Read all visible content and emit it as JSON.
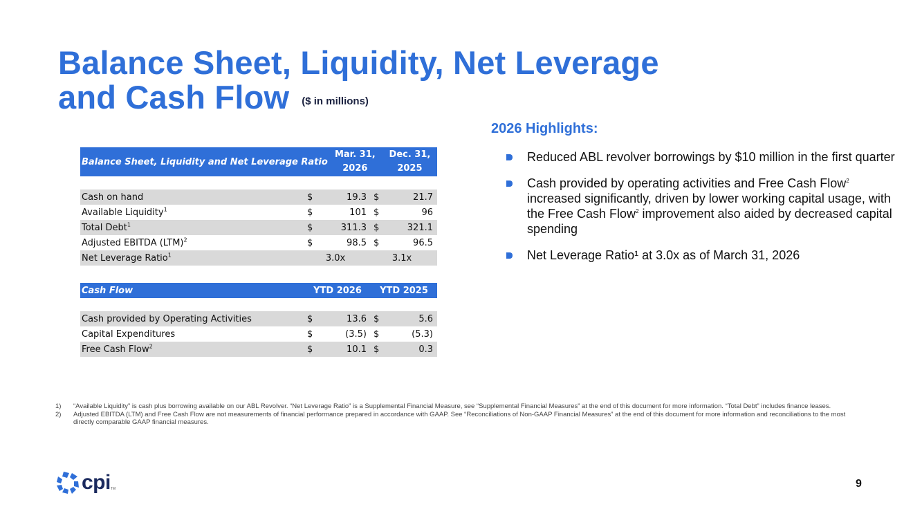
{
  "title": {
    "line1": "Balance Sheet, Liquidity, Net Leverage",
    "line2": "and Cash Flow",
    "unit": "($ in millions)"
  },
  "balance_table": {
    "header": "Balance Sheet, Liquidity and Net Leverage Ratio",
    "col1": [
      "Mar. 31,",
      "2026"
    ],
    "col2": [
      "Dec. 31,",
      "2025"
    ],
    "rows": [
      {
        "label": "Cash on hand",
        "sup": "",
        "c1": "$",
        "v1": "19.3",
        "c2": "$",
        "v2": "21.7"
      },
      {
        "label": "Available Liquidity",
        "sup": "1",
        "c1": "$",
        "v1": "101",
        "c2": "$",
        "v2": "96"
      },
      {
        "label": "Total Debt",
        "sup": "1",
        "c1": "$",
        "v1": "311.3",
        "c2": "$",
        "v2": "321.1"
      },
      {
        "label": "Adjusted EBITDA (LTM)",
        "sup": "2",
        "c1": "$",
        "v1": "98.5",
        "c2": "$",
        "v2": "96.5"
      },
      {
        "label": "Net Leverage Ratio",
        "sup": "1",
        "c1": "",
        "v1": "3.0x",
        "c2": "",
        "v2": "3.1x"
      }
    ]
  },
  "cashflow_table": {
    "header": "Cash Flow",
    "col1": "YTD 2026",
    "col2": "YTD 2025",
    "rows": [
      {
        "label": "Cash provided by Operating Activities",
        "sup": "",
        "c1": "$",
        "v1": "13.6",
        "c2": "$",
        "v2": "5.6"
      },
      {
        "label": "Capital Expenditures",
        "sup": "",
        "c1": "$",
        "v1": "(3.5)",
        "c2": "$",
        "v2": "(5.3)"
      },
      {
        "label": "Free Cash Flow",
        "sup": "2",
        "c1": "$",
        "v1": "10.1",
        "c2": "$",
        "v2": "0.3"
      }
    ]
  },
  "highlights": {
    "title": "2026 Highlights:",
    "items": [
      {
        "text": "Reduced ABL revolver borrowings by $10 million in the first quarter"
      },
      {
        "text_a": "Cash provided by operating activities and Free Cash Flow",
        "sup_a": "2",
        "text_b": " increased significantly, driven by lower working capital usage, with the Free Cash Flow",
        "sup_b": "2",
        "text_c": " improvement also aided by decreased capital spending"
      },
      {
        "text": "Net Leverage Ratio¹ at 3.0x as of March 31, 2026"
      }
    ]
  },
  "footnotes": [
    {
      "num": "1)",
      "text": "“Available Liquidity” is cash plus borrowing available on our ABL Revolver. “Net Leverage Ratio” is a Supplemental Financial Measure, see “Supplemental Financial Measures” at the end of this document for more information. “Total Debt” includes finance leases."
    },
    {
      "num": "2)",
      "text": "Adjusted EBITDA (LTM) and Free Cash Flow are not measurements of financial performance prepared in accordance with GAAP. See “Reconciliations of Non-GAAP Financial Measures” at the end of this document for more information and reconciliations to the most directly comparable GAAP financial measures."
    }
  ],
  "logo": {
    "text": "cpi",
    "tm": "TM"
  },
  "page_number": "9",
  "colors": {
    "accent": "#2f6fd8",
    "shade": "#d9d9d9",
    "navy": "#1b2a5e"
  }
}
